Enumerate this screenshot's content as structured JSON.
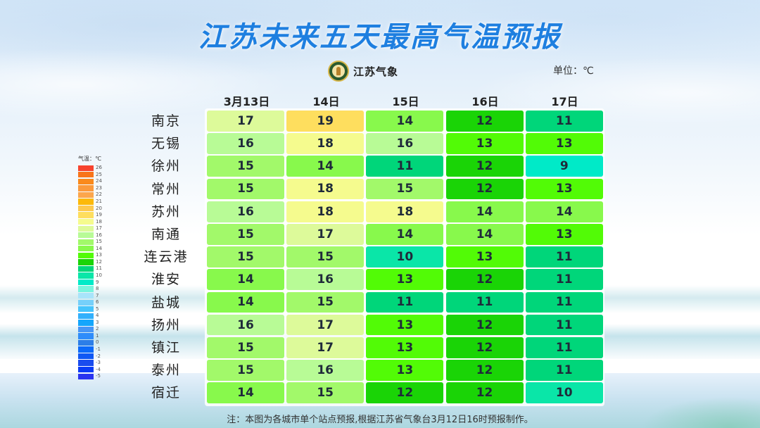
{
  "title": "江苏未来五天最高气温预报",
  "logo": {
    "icon": "jiangsu-meteorology-emblem-icon",
    "text": "江苏气象"
  },
  "unit_label": "单位：℃",
  "legend": {
    "title": "气温：℃",
    "items": [
      {
        "value": "26",
        "color": "#f7432e"
      },
      {
        "value": "25",
        "color": "#f8741a"
      },
      {
        "value": "24",
        "color": "#fa8a1c"
      },
      {
        "value": "23",
        "color": "#fb9a3c"
      },
      {
        "value": "22",
        "color": "#fca64c"
      },
      {
        "value": "21",
        "color": "#fcb90a"
      },
      {
        "value": "20",
        "color": "#fdc94e"
      },
      {
        "value": "19",
        "color": "#fede5e"
      },
      {
        "value": "18",
        "color": "#f5fb8e"
      },
      {
        "value": "17",
        "color": "#ddfa9a"
      },
      {
        "value": "16",
        "color": "#b8fb96"
      },
      {
        "value": "15",
        "color": "#a2f96a"
      },
      {
        "value": "14",
        "color": "#88f94c"
      },
      {
        "value": "13",
        "color": "#52fb06"
      },
      {
        "value": "12",
        "color": "#1ad406"
      },
      {
        "value": "11",
        "color": "#00d67a"
      },
      {
        "value": "10",
        "color": "#0ae6a8"
      },
      {
        "value": "9",
        "color": "#00eac8"
      },
      {
        "value": "8",
        "color": "#78f4de"
      },
      {
        "value": "7",
        "color": "#a8e4fa"
      },
      {
        "value": "6",
        "color": "#76d0fa"
      },
      {
        "value": "5",
        "color": "#46c4fc"
      },
      {
        "value": "4",
        "color": "#32b0fc"
      },
      {
        "value": "3",
        "color": "#14a6fc"
      },
      {
        "value": "2",
        "color": "#4696f6"
      },
      {
        "value": "1",
        "color": "#2e8cfa"
      },
      {
        "value": "0",
        "color": "#2c7ee8"
      },
      {
        "value": "-1",
        "color": "#0c6afa"
      },
      {
        "value": "-2",
        "color": "#1058f4"
      },
      {
        "value": "-3",
        "color": "#1a4cee"
      },
      {
        "value": "-4",
        "color": "#0a3cf6"
      },
      {
        "value": "-5",
        "color": "#2a34f0"
      }
    ]
  },
  "table": {
    "columns": [
      "3月13日",
      "14日",
      "15日",
      "16日",
      "17日"
    ],
    "rows": [
      {
        "city": "南京",
        "values": [
          17,
          19,
          14,
          12,
          11
        ]
      },
      {
        "city": "无锡",
        "values": [
          16,
          18,
          16,
          13,
          13
        ]
      },
      {
        "city": "徐州",
        "values": [
          15,
          14,
          11,
          12,
          9
        ]
      },
      {
        "city": "常州",
        "values": [
          15,
          18,
          15,
          12,
          13
        ]
      },
      {
        "city": "苏州",
        "values": [
          16,
          18,
          18,
          14,
          14
        ]
      },
      {
        "city": "南通",
        "values": [
          15,
          17,
          14,
          14,
          13
        ]
      },
      {
        "city": "连云港",
        "values": [
          15,
          15,
          10,
          13,
          11
        ]
      },
      {
        "city": "淮安",
        "values": [
          14,
          16,
          13,
          12,
          11
        ]
      },
      {
        "city": "盐城",
        "values": [
          14,
          15,
          11,
          11,
          11
        ]
      },
      {
        "city": "扬州",
        "values": [
          16,
          17,
          13,
          12,
          11
        ]
      },
      {
        "city": "镇江",
        "values": [
          15,
          17,
          13,
          12,
          11
        ]
      },
      {
        "city": "泰州",
        "values": [
          15,
          16,
          13,
          12,
          11
        ]
      },
      {
        "city": "宿迁",
        "values": [
          14,
          15,
          12,
          12,
          10
        ]
      }
    ]
  },
  "note": "注：本图为各城市单个站点预报,根据江苏省气象台3月12日16时预报制作。",
  "chart_data": {
    "type": "heatmap",
    "title": "江苏未来五天最高气温预报",
    "unit": "℃",
    "x": [
      "3月13日",
      "14日",
      "15日",
      "16日",
      "17日"
    ],
    "y": [
      "南京",
      "无锡",
      "徐州",
      "常州",
      "苏州",
      "南通",
      "连云港",
      "淮安",
      "盐城",
      "扬州",
      "镇江",
      "泰州",
      "宿迁"
    ],
    "values": [
      [
        17,
        19,
        14,
        12,
        11
      ],
      [
        16,
        18,
        16,
        13,
        13
      ],
      [
        15,
        14,
        11,
        12,
        9
      ],
      [
        15,
        18,
        15,
        12,
        13
      ],
      [
        16,
        18,
        18,
        14,
        14
      ],
      [
        15,
        17,
        14,
        14,
        13
      ],
      [
        15,
        15,
        10,
        13,
        11
      ],
      [
        14,
        16,
        13,
        12,
        11
      ],
      [
        14,
        15,
        11,
        11,
        11
      ],
      [
        16,
        17,
        13,
        12,
        11
      ],
      [
        15,
        17,
        13,
        12,
        11
      ],
      [
        15,
        16,
        13,
        12,
        11
      ],
      [
        14,
        15,
        12,
        12,
        10
      ]
    ],
    "colorscale_label": "气温：℃",
    "colorscale_range": [
      -5,
      26
    ],
    "legend_position": "left",
    "note": "注：本图为各城市单个站点预报,根据江苏省气象台3月12日16时预报制作。"
  }
}
